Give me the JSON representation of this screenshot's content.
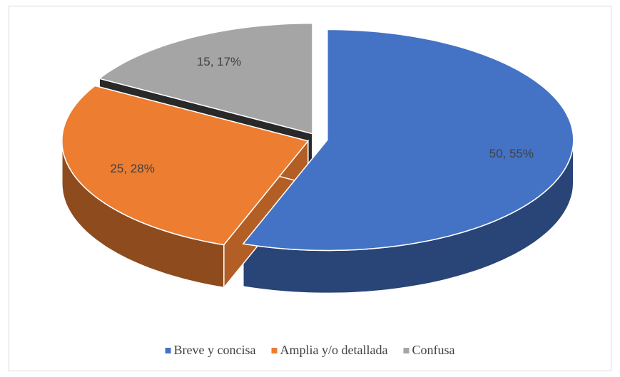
{
  "chart_data": {
    "type": "pie3d",
    "categories": [
      "Breve y concisa",
      "Amplia y/o detallada",
      "Confusa"
    ],
    "values": [
      50,
      25,
      15
    ],
    "value_labels": [
      "50, 55%",
      "25, 28%",
      "15, 17%"
    ],
    "colors": [
      "#4472c4",
      "#ed7d31",
      "#a5a5a5"
    ],
    "legend": "bottom"
  }
}
